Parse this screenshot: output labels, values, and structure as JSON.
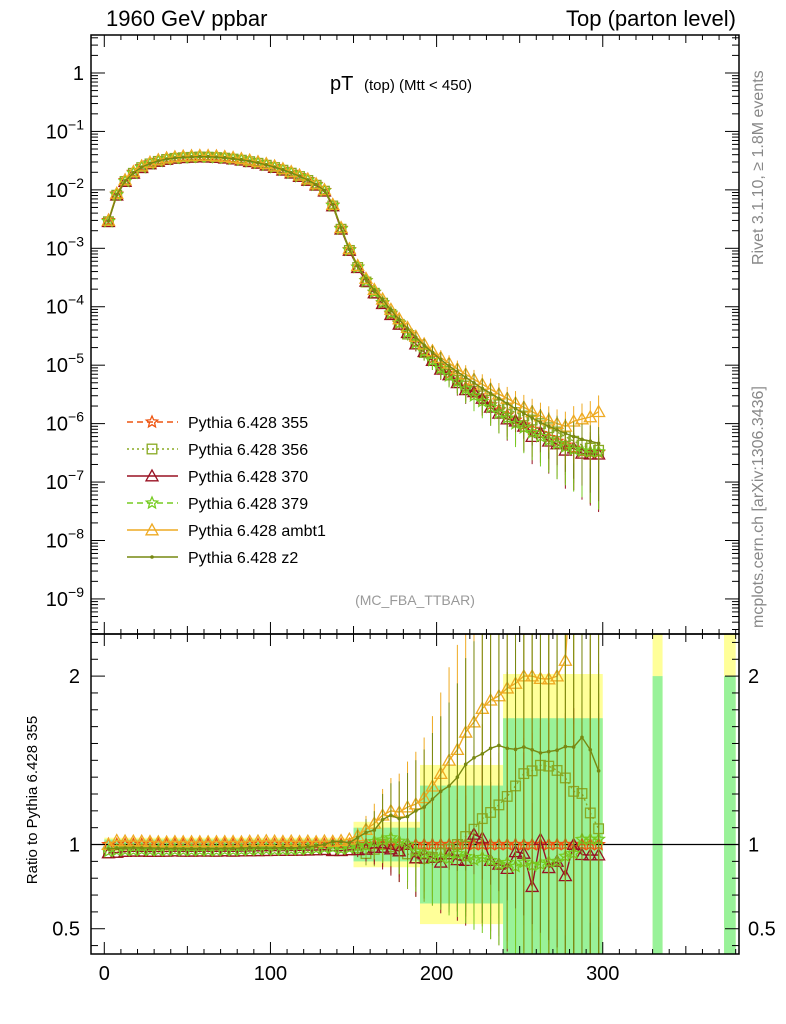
{
  "header": {
    "left": "1960 GeV ppbar",
    "right": "Top (parton level)"
  },
  "side": {
    "rivet": "Rivet 3.1.10, ≥ 1.8M events",
    "mcplots": "mcplots.cern.ch [arXiv:1306.3436]"
  },
  "chart_data": {
    "type": "line",
    "title": "pT (top) (Mtt < 450)",
    "title_main": "pT",
    "title_small": "(top) (Mtt < 450)",
    "analysis_label": "(MC_FBA_TTBAR)",
    "ylabel_ratio": "Ratio to Pythia 6.428 355",
    "xlim": [
      -8,
      382
    ],
    "ylim_main_log10": [
      -9.6,
      0.65
    ],
    "ylim_ratio": [
      0.35,
      2.25
    ],
    "x_ticks": [
      "0",
      "100",
      "200",
      "300"
    ],
    "y_ticks_main": [
      "1",
      "10^-1",
      "10^-2",
      "10^-3",
      "10^-4",
      "10^-5",
      "10^-6",
      "10^-7",
      "10^-8",
      "10^-9"
    ],
    "y_ticks_ratio": [
      "0.5",
      "1",
      "2"
    ],
    "x": [
      2.5,
      7.5,
      12.5,
      17.5,
      22.5,
      27.5,
      32.5,
      37.5,
      42.5,
      47.5,
      52.5,
      57.5,
      62.5,
      67.5,
      72.5,
      77.5,
      82.5,
      87.5,
      92.5,
      97.5,
      102.5,
      107.5,
      112.5,
      117.5,
      122.5,
      127.5,
      132.5,
      137.5,
      142.5,
      147.5,
      152.5,
      157.5,
      162.5,
      167.5,
      172.5,
      177.5,
      182.5,
      187.5,
      192.5,
      197.5,
      202.5,
      207.5,
      212.5,
      217.5,
      222.5,
      227.5,
      232.5,
      237.5,
      242.5,
      247.5,
      252.5,
      257.5,
      262.5,
      267.5,
      272.5,
      277.5,
      282.5,
      287.5,
      292.5,
      297.5
    ],
    "reference_band": [
      {
        "x": [
          0,
          150
        ],
        "half_width": 0.03
      },
      {
        "x": [
          150,
          190
        ],
        "half_width": 0.1
      },
      {
        "x": [
          190,
          240
        ],
        "half_width": 0.35
      },
      {
        "x": [
          240,
          300
        ],
        "half_width": 0.75
      }
    ],
    "series": [
      {
        "name": "Pythia 6.428 355",
        "color": "#ee5511",
        "dash": "6,4",
        "marker": "star",
        "values": [
          0.003,
          0.0085,
          0.0145,
          0.02,
          0.025,
          0.029,
          0.032,
          0.0345,
          0.036,
          0.037,
          0.0375,
          0.038,
          0.0378,
          0.0372,
          0.0363,
          0.035,
          0.0335,
          0.0316,
          0.0296,
          0.0274,
          0.025,
          0.0225,
          0.02,
          0.0175,
          0.015,
          0.0124,
          0.0098,
          0.0055,
          0.0022,
          0.00095,
          0.00048,
          0.00028,
          0.000175,
          0.000115,
          7.5e-05,
          5.2e-05,
          3.6e-05,
          2.5e-05,
          1.8e-05,
          1.3e-05,
          9.5e-06,
          7.2e-06,
          5.5e-06,
          4.2e-06,
          3.3e-06,
          2.6e-06,
          2.1e-06,
          1.7e-06,
          1.4e-06,
          1.15e-06,
          9.5e-07,
          8e-07,
          6.8e-07,
          5.8e-07,
          5e-07,
          4.3e-07,
          3.8e-07,
          3.3e-07,
          3.2e-07,
          3.2e-07
        ]
      },
      {
        "name": "Pythia 6.428 356",
        "color": "#88aa22",
        "dash": "2,3",
        "marker": "square",
        "values": [
          0.00285,
          0.0081,
          0.0139,
          0.0192,
          0.024,
          0.0278,
          0.0307,
          0.0331,
          0.0346,
          0.0355,
          0.036,
          0.0365,
          0.0363,
          0.0357,
          0.0349,
          0.0336,
          0.0322,
          0.0304,
          0.0285,
          0.0264,
          0.0241,
          0.0217,
          0.0193,
          0.0169,
          0.0145,
          0.012,
          0.0095,
          0.0053,
          0.00212,
          0.00092,
          0.00047,
          0.000265,
          0.00017,
          0.000115,
          7.4e-05,
          5e-05,
          3.4e-05,
          2.3e-05,
          1.65e-05,
          1.2e-05,
          9e-06,
          7e-06,
          5.5e-06,
          4.4e-06,
          3.6e-06,
          3e-06,
          2.5e-06,
          2.1e-06,
          1.8e-06,
          1.55e-06,
          1.35e-06,
          1.15e-06,
          1e-06,
          8.5e-07,
          7.2e-07,
          6e-07,
          5e-07,
          4.3e-07,
          3.8e-07,
          3.5e-07
        ]
      },
      {
        "name": "Pythia 6.428 370",
        "color": "#991122",
        "dash": "",
        "marker": "triangle",
        "values": [
          0.00285,
          0.0081,
          0.0139,
          0.0192,
          0.024,
          0.0278,
          0.0307,
          0.0331,
          0.0346,
          0.0355,
          0.036,
          0.0365,
          0.0363,
          0.0357,
          0.0349,
          0.0336,
          0.0322,
          0.0304,
          0.0285,
          0.0264,
          0.0241,
          0.0217,
          0.0193,
          0.0169,
          0.0145,
          0.012,
          0.0095,
          0.0053,
          0.00212,
          0.00092,
          0.000465,
          0.000272,
          0.000172,
          0.000113,
          7.3e-05,
          5e-05,
          3.6e-05,
          2.3e-05,
          1.7e-05,
          1.2e-05,
          8.5e-06,
          6.8e-06,
          5e-06,
          3.8e-06,
          3.5e-06,
          2.7e-06,
          1.9e-06,
          1.5e-06,
          1.2e-06,
          1.1e-06,
          9e-07,
          6e-07,
          7e-07,
          5e-07,
          4.5e-07,
          3.5e-07,
          3.8e-07,
          3.1e-07,
          3e-07,
          3e-07
        ]
      },
      {
        "name": "Pythia 6.428 379",
        "color": "#77cc22",
        "dash": "6,4",
        "marker": "star",
        "values": [
          0.00288,
          0.0082,
          0.014,
          0.0193,
          0.0242,
          0.028,
          0.0309,
          0.0333,
          0.0348,
          0.0357,
          0.0362,
          0.0367,
          0.0365,
          0.0359,
          0.0351,
          0.0338,
          0.0324,
          0.0306,
          0.0287,
          0.0266,
          0.0242,
          0.0218,
          0.0194,
          0.017,
          0.0146,
          0.0121,
          0.0096,
          0.0054,
          0.00214,
          0.00093,
          0.000475,
          0.000278,
          0.000178,
          0.000118,
          7.8e-05,
          5.3e-05,
          3.6e-05,
          2.4e-05,
          1.7e-05,
          1.2e-05,
          8.8e-06,
          6.6e-06,
          5.2e-06,
          3.9e-06,
          3e-06,
          2.4e-06,
          1.9e-06,
          1.5e-06,
          1.25e-06,
          1e-06,
          8.5e-07,
          7e-07,
          6e-07,
          5.2e-07,
          4.5e-07,
          4e-07,
          3.6e-07,
          3.4e-07,
          3.3e-07,
          3.3e-07
        ]
      },
      {
        "name": "Pythia 6.428 ambt1",
        "color": "#eeaa22",
        "dash": "",
        "marker": "triangle",
        "values": [
          0.003,
          0.0087,
          0.0148,
          0.0204,
          0.0255,
          0.0295,
          0.0325,
          0.035,
          0.0366,
          0.0376,
          0.0381,
          0.0386,
          0.0384,
          0.0378,
          0.0369,
          0.0356,
          0.034,
          0.0322,
          0.0302,
          0.028,
          0.0255,
          0.0229,
          0.0204,
          0.0178,
          0.0153,
          0.0126,
          0.01,
          0.0056,
          0.00225,
          0.00098,
          0.000505,
          0.000305,
          0.000197,
          0.000135,
          9e-05,
          6.2e-05,
          4.4e-05,
          3.1e-05,
          2.3e-05,
          1.75e-05,
          1.35e-05,
          1.08e-05,
          8.6e-06,
          7e-06,
          5.7e-06,
          4.7e-06,
          3.9e-06,
          3.2e-06,
          2.7e-06,
          2.25e-06,
          1.9e-06,
          1.6e-06,
          1.35e-06,
          1.15e-06,
          1e-06,
          9e-07,
          1.1e-06,
          1.2e-06,
          1.3e-06,
          1.6e-06
        ]
      },
      {
        "name": "Pythia 6.428 z2",
        "color": "#778811",
        "dash": "",
        "marker": "dot",
        "values": [
          0.00292,
          0.0083,
          0.0142,
          0.0196,
          0.0245,
          0.0284,
          0.0313,
          0.0337,
          0.0352,
          0.0361,
          0.0366,
          0.0371,
          0.0369,
          0.0363,
          0.0355,
          0.0342,
          0.0328,
          0.031,
          0.029,
          0.0268,
          0.0245,
          0.0221,
          0.0196,
          0.0172,
          0.0148,
          0.0123,
          0.0098,
          0.0056,
          0.00224,
          0.00096,
          0.0005,
          0.0003,
          0.00019,
          0.000132,
          8.8e-05,
          6e-05,
          4.2e-05,
          3e-05,
          2.2e-05,
          1.65e-05,
          1.25e-05,
          9.7e-06,
          7.7e-06,
          6.2e-06,
          5e-06,
          4e-06,
          3.3e-06,
          2.7e-06,
          2.2e-06,
          1.8e-06,
          1.5e-06,
          1.25e-06,
          1.05e-06,
          9e-07,
          7.8e-07,
          6.8e-07,
          6e-07,
          5.4e-07,
          5e-07,
          4.6e-07
        ]
      }
    ]
  }
}
